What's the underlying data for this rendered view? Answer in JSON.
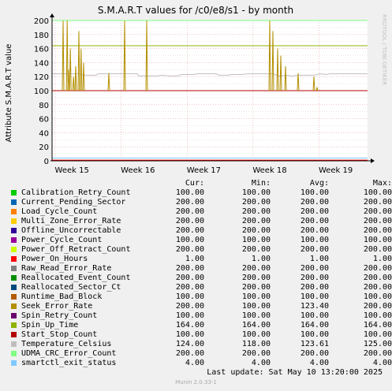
{
  "chart_data": {
    "type": "line",
    "title": "S.M.A.R.T values for /c0/e8/s1 - by month",
    "ylabel": "Attribute S.M.A.R.T value",
    "watermark": "RRDTOOL / TOBI OETIKER",
    "ylim": [
      0,
      200
    ],
    "yticks": [
      0,
      20,
      40,
      60,
      80,
      100,
      120,
      140,
      160,
      180,
      200
    ],
    "xlim": [
      0,
      1
    ],
    "xticks": [
      {
        "label": "Week 15",
        "x": 0.115
      },
      {
        "label": "Week 16",
        "x": 0.324
      },
      {
        "label": "Week 17",
        "x": 0.533
      },
      {
        "label": "Week 18",
        "x": 0.742
      },
      {
        "label": "Week 19",
        "x": 0.951
      }
    ],
    "grid": true,
    "legend_placement": "bottom",
    "columns": [
      "Cur:",
      "Min:",
      "Avg:",
      "Max:"
    ],
    "series": [
      {
        "name": "Calibration_Retry_Count",
        "color": "#00cc00",
        "cur": "100.00",
        "min": "100.00",
        "avg": "100.00",
        "max": "100.00",
        "level": 100
      },
      {
        "name": "Current_Pending_Sector",
        "color": "#0066b3",
        "cur": "200.00",
        "min": "200.00",
        "avg": "200.00",
        "max": "200.00",
        "level": 200
      },
      {
        "name": "Load_Cycle_Count",
        "color": "#ff8000",
        "cur": "200.00",
        "min": "200.00",
        "avg": "200.00",
        "max": "200.00",
        "level": 200
      },
      {
        "name": "Multi_Zone_Error_Rate",
        "color": "#ffcc00",
        "cur": "200.00",
        "min": "200.00",
        "avg": "200.00",
        "max": "200.00",
        "level": 200
      },
      {
        "name": "Offline_Uncorrectable",
        "color": "#330099",
        "cur": "200.00",
        "min": "200.00",
        "avg": "200.00",
        "max": "200.00",
        "level": 200
      },
      {
        "name": "Power_Cycle_Count",
        "color": "#990099",
        "cur": "100.00",
        "min": "100.00",
        "avg": "100.00",
        "max": "100.00",
        "level": 100
      },
      {
        "name": "Power_Off_Retract_Count",
        "color": "#ccff00",
        "cur": "200.00",
        "min": "200.00",
        "avg": "200.00",
        "max": "200.00",
        "level": 200
      },
      {
        "name": "Power_On_Hours",
        "color": "#ff0000",
        "cur": "1.00",
        "min": "1.00",
        "avg": "1.00",
        "max": "1.00",
        "level": 1
      },
      {
        "name": "Raw_Read_Error_Rate",
        "color": "#808080",
        "cur": "200.00",
        "min": "200.00",
        "avg": "200.00",
        "max": "200.00",
        "level": 200
      },
      {
        "name": "Reallocated_Event_Count",
        "color": "#008f00",
        "cur": "200.00",
        "min": "200.00",
        "avg": "200.00",
        "max": "200.00",
        "level": 200
      },
      {
        "name": "Reallocated_Sector_Ct",
        "color": "#00487d",
        "cur": "200.00",
        "min": "200.00",
        "avg": "200.00",
        "max": "200.00",
        "level": 200
      },
      {
        "name": "Runtime_Bad_Block",
        "color": "#b35a00",
        "cur": "100.00",
        "min": "100.00",
        "avg": "100.00",
        "max": "100.00",
        "level": 100
      },
      {
        "name": "Seek_Error_Rate",
        "color": "#b38f00",
        "cur": "200.00",
        "min": "100.00",
        "avg": "123.40",
        "max": "200.00",
        "level": 200
      },
      {
        "name": "Spin_Retry_Count",
        "color": "#6b006b",
        "cur": "100.00",
        "min": "100.00",
        "avg": "100.00",
        "max": "100.00",
        "level": 100
      },
      {
        "name": "Spin_Up_Time",
        "color": "#8fb300",
        "cur": "164.00",
        "min": "164.00",
        "avg": "164.00",
        "max": "164.00",
        "level": 164
      },
      {
        "name": "Start_Stop_Count",
        "color": "#b30000",
        "cur": "100.00",
        "min": "100.00",
        "avg": "100.00",
        "max": "100.00",
        "level": 100
      },
      {
        "name": "Temperature_Celsius",
        "color": "#bebebe",
        "cur": "124.00",
        "min": "118.00",
        "avg": "123.61",
        "max": "125.00",
        "level": 124
      },
      {
        "name": "UDMA_CRC_Error_Count",
        "color": "#80ff80",
        "cur": "200.00",
        "min": "200.00",
        "avg": "200.00",
        "max": "200.00",
        "level": 200
      },
      {
        "name": "smartctl_exit_status",
        "color": "#80c9ff",
        "cur": "4.00",
        "min": "4.00",
        "avg": "4.00",
        "max": "4.00",
        "level": 4
      }
    ],
    "temperature_trace": [
      [
        0.0,
        124
      ],
      [
        0.09,
        124
      ],
      [
        0.1,
        122
      ],
      [
        0.14,
        122
      ],
      [
        0.145,
        124
      ],
      [
        0.27,
        124
      ],
      [
        0.275,
        121
      ],
      [
        0.33,
        121
      ],
      [
        0.35,
        122
      ],
      [
        0.37,
        121
      ],
      [
        0.4,
        121
      ],
      [
        0.41,
        123
      ],
      [
        0.45,
        123
      ],
      [
        0.46,
        124
      ],
      [
        0.52,
        124
      ],
      [
        0.53,
        122
      ],
      [
        0.56,
        122
      ],
      [
        0.57,
        123
      ],
      [
        0.6,
        123
      ],
      [
        0.62,
        124
      ],
      [
        0.7,
        124
      ],
      [
        0.72,
        121
      ],
      [
        0.74,
        122
      ],
      [
        0.76,
        121
      ],
      [
        0.78,
        122
      ],
      [
        0.83,
        122
      ],
      [
        0.85,
        124
      ],
      [
        0.87,
        123
      ],
      [
        0.88,
        124
      ],
      [
        1.0,
        124
      ]
    ],
    "seek_error_spikes": [
      [
        0.035,
        200
      ],
      [
        0.048,
        200
      ],
      [
        0.052,
        130
      ],
      [
        0.058,
        160
      ],
      [
        0.068,
        120
      ],
      [
        0.075,
        135
      ],
      [
        0.085,
        185
      ],
      [
        0.092,
        160
      ],
      [
        0.1,
        140
      ],
      [
        0.18,
        125
      ],
      [
        0.23,
        200
      ],
      [
        0.3,
        200
      ],
      [
        0.69,
        200
      ],
      [
        0.7,
        185
      ],
      [
        0.715,
        160
      ],
      [
        0.725,
        150
      ],
      [
        0.74,
        135
      ],
      [
        0.78,
        125
      ],
      [
        0.83,
        120
      ],
      [
        0.84,
        105
      ]
    ]
  },
  "last_update": "Last update:  Sat May 10 13:20:00 2025",
  "footer": "Munin 2.0.33-1"
}
